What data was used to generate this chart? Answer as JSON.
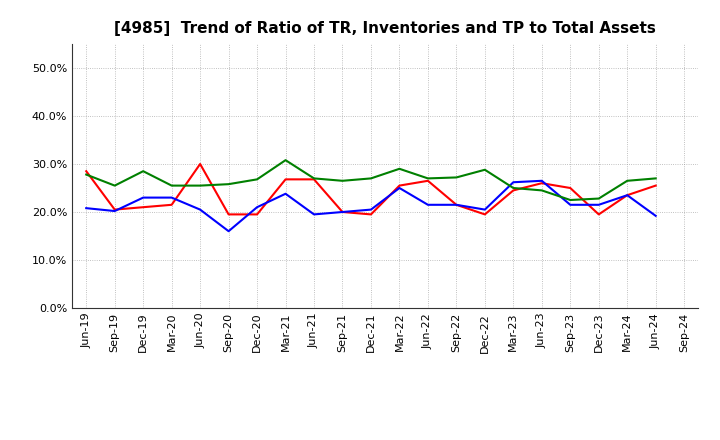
{
  "title": "[4985]  Trend of Ratio of TR, Inventories and TP to Total Assets",
  "x_labels": [
    "Jun-19",
    "Sep-19",
    "Dec-19",
    "Mar-20",
    "Jun-20",
    "Sep-20",
    "Dec-20",
    "Mar-21",
    "Jun-21",
    "Sep-21",
    "Dec-21",
    "Mar-22",
    "Jun-22",
    "Sep-22",
    "Dec-22",
    "Mar-23",
    "Jun-23",
    "Sep-23",
    "Dec-23",
    "Mar-24",
    "Jun-24",
    "Sep-24"
  ],
  "trade_receivables": [
    0.285,
    0.205,
    0.21,
    0.215,
    0.3,
    0.195,
    0.195,
    0.268,
    0.268,
    0.2,
    0.195,
    0.255,
    0.265,
    0.215,
    0.195,
    0.245,
    0.26,
    0.25,
    0.195,
    0.235,
    0.255,
    null
  ],
  "inventories": [
    0.208,
    0.202,
    0.23,
    0.23,
    0.205,
    0.16,
    0.21,
    0.238,
    0.195,
    0.2,
    0.205,
    0.25,
    0.215,
    0.215,
    0.205,
    0.262,
    0.265,
    0.215,
    0.215,
    0.235,
    0.192,
    null
  ],
  "trade_payables": [
    0.278,
    0.255,
    0.285,
    0.255,
    0.255,
    0.258,
    0.268,
    0.308,
    0.27,
    0.265,
    0.27,
    0.29,
    0.27,
    0.272,
    0.288,
    0.25,
    0.245,
    0.225,
    0.228,
    0.265,
    0.27,
    null
  ],
  "tr_color": "#FF0000",
  "inv_color": "#0000FF",
  "tp_color": "#008000",
  "ylim": [
    0.0,
    0.55
  ],
  "yticks": [
    0.0,
    0.1,
    0.2,
    0.3,
    0.4,
    0.5
  ],
  "background_color": "#FFFFFF",
  "grid_color": "#999999",
  "title_fontsize": 11,
  "tick_fontsize": 8,
  "legend_fontsize": 9,
  "line_width": 1.5
}
